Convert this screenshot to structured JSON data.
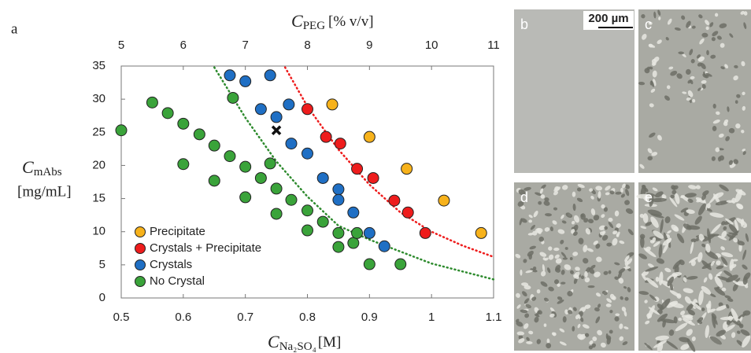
{
  "chart_data": {
    "type": "scatter",
    "x_label": {
      "symbol": "C",
      "sub": "Na₂SO₄",
      "unit": "[M]"
    },
    "x2_label": {
      "symbol": "C",
      "sub": "PEG",
      "unit": "[% v/v]"
    },
    "y_label": {
      "symbol": "C",
      "sub": "mAbs",
      "unit": "[mg/mL]"
    },
    "xlim": [
      0.5,
      1.1
    ],
    "xticks": [
      0.5,
      0.6,
      0.7,
      0.8,
      0.9,
      1,
      1.1
    ],
    "x2lim": [
      5,
      11
    ],
    "x2ticks": [
      5,
      6,
      7,
      8,
      9,
      10,
      11
    ],
    "ylim": [
      0,
      35
    ],
    "yticks": [
      0,
      5,
      10,
      15,
      20,
      25,
      30,
      35
    ],
    "legend": "lower left",
    "series": [
      {
        "name": "Precipitate",
        "color": "#f7b21b",
        "x": [
          0.84,
          0.9,
          0.96,
          1.02,
          1.08
        ],
        "values": [
          29.2,
          24.3,
          19.5,
          14.7,
          9.8
        ]
      },
      {
        "name": "Crystals + Precipitate",
        "color": "#ee1c1c",
        "x": [
          0.8,
          0.83,
          0.853,
          0.88,
          0.906,
          0.94,
          0.962,
          0.99
        ],
        "values": [
          28.5,
          24.3,
          23.3,
          19.5,
          18.1,
          14.7,
          12.9,
          9.8
        ]
      },
      {
        "name": "Crystals",
        "color": "#1f6fc4",
        "x": [
          0.675,
          0.7,
          0.74,
          0.725,
          0.75,
          0.77,
          0.774,
          0.8,
          0.825,
          0.85,
          0.85,
          0.874,
          0.9,
          0.924
        ],
        "values": [
          33.6,
          32.7,
          33.6,
          28.5,
          27.3,
          29.2,
          23.3,
          21.8,
          18.1,
          16.4,
          14.8,
          12.9,
          9.8,
          7.8
        ]
      },
      {
        "name": "No Crystal",
        "color": "#3aa33a",
        "x": [
          0.5,
          0.55,
          0.575,
          0.6,
          0.6,
          0.626,
          0.65,
          0.65,
          0.675,
          0.68,
          0.7,
          0.7,
          0.725,
          0.74,
          0.75,
          0.75,
          0.774,
          0.8,
          0.8,
          0.825,
          0.85,
          0.85,
          0.874,
          0.88,
          0.9,
          0.95
        ],
        "values": [
          25.3,
          29.5,
          27.9,
          26.3,
          20.2,
          24.7,
          23.0,
          17.7,
          21.4,
          30.2,
          19.8,
          15.2,
          18.1,
          20.3,
          16.5,
          12.7,
          14.8,
          13.2,
          10.2,
          11.5,
          9.8,
          7.7,
          8.3,
          9.8,
          5.1,
          5.1
        ]
      }
    ],
    "highlight": {
      "x": 0.75,
      "y": 25.3
    },
    "fits": [
      {
        "color": "#2e8b2e",
        "x": [
          0.65,
          0.7,
          0.75,
          0.8,
          0.85,
          0.9,
          1.0,
          1.1
        ],
        "values": [
          34.8,
          27.2,
          20.6,
          15.3,
          10.9,
          8.8,
          5.2,
          2.8
        ]
      },
      {
        "color": "#ee1c1c",
        "x": [
          0.764,
          0.8,
          0.85,
          0.9,
          0.95,
          1.0,
          1.05,
          1.1
        ],
        "values": [
          34.8,
          28.9,
          22.4,
          17.1,
          12.9,
          10.0,
          7.9,
          6.2
        ]
      }
    ]
  },
  "figure_label": "a",
  "panels": [
    {
      "label": "b"
    },
    {
      "label": "c"
    },
    {
      "label": "d"
    },
    {
      "label": "e"
    }
  ],
  "scale_bar": "200 µm"
}
